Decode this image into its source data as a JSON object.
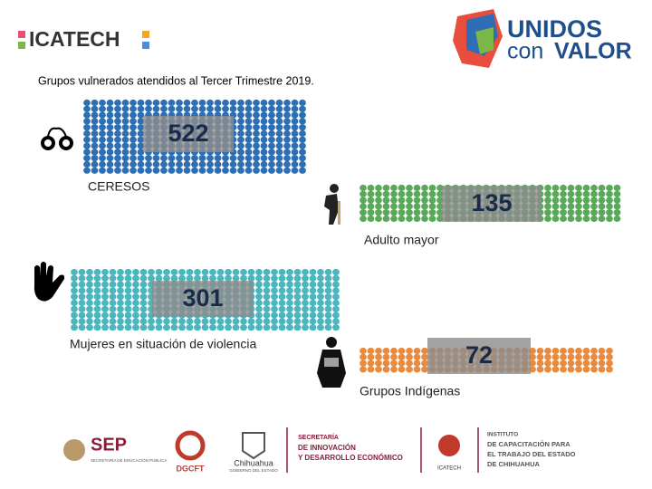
{
  "header": {
    "logo_left": "ICATECH",
    "logo_right_top": "UNIDOS",
    "logo_right_a": "con",
    "logo_right_b": "VALOR"
  },
  "title": "Grupos vulnerados atendidos al Tercer Trimestre 2019.",
  "groups": [
    {
      "label": "CERESOS",
      "value": 522
    },
    {
      "label": "Adulto mayor",
      "value": 135
    },
    {
      "label": "Mujeres en situación de violencia",
      "value": 301
    },
    {
      "label": "Grupos Indígenas",
      "value": 72
    }
  ],
  "footer": {
    "sep": "SEP",
    "sep_sub": "SECRETARÍA DE EDUCACIÓN PÚBLICA",
    "dgcft": "DGCFT",
    "chihuahua": "Chihuahua",
    "chihuahua_sub": "GOBIERNO DEL ESTADO",
    "sec": [
      "SECRETARÍA",
      "DE INNOVACIÓN",
      "Y DESARROLLO ECONÓMICO"
    ],
    "icatech": "ICATECH",
    "inst": [
      "INSTITUTO",
      "DE CAPACITACIÓN PARA",
      "EL TRABAJO DEL ESTADO",
      "DE CHIHUAHUA"
    ]
  }
}
